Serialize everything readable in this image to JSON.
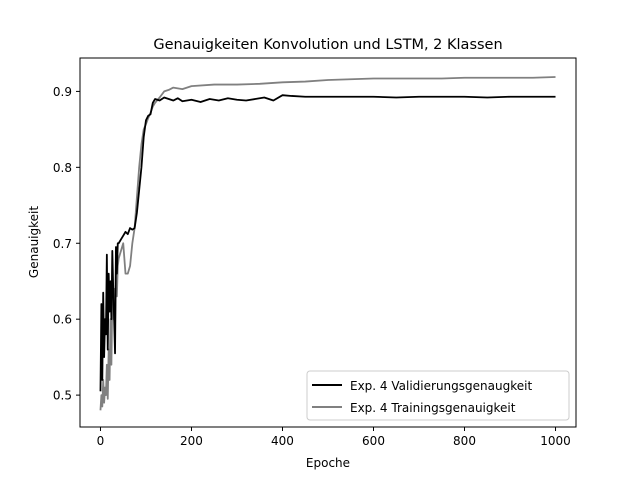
{
  "chart_data": {
    "type": "line",
    "title": "Genauigkeiten Konvolution und LSTM, 2 Klassen",
    "xlabel": "Epoche",
    "ylabel": "Genauigkeit",
    "xlim": [
      -45,
      1045
    ],
    "ylim": [
      0.458,
      0.944
    ],
    "xticks": [
      0,
      200,
      400,
      600,
      800,
      1000
    ],
    "yticks": [
      0.5,
      0.6,
      0.7,
      0.8,
      0.9
    ],
    "grid": false,
    "legend_position": "bottom-right",
    "series": [
      {
        "name": "Exp. 4 Validierungsgenaugkeit",
        "color": "#000000",
        "x": [
          0,
          2,
          4,
          6,
          8,
          10,
          12,
          14,
          16,
          18,
          20,
          22,
          24,
          26,
          28,
          30,
          32,
          34,
          36,
          38,
          40,
          45,
          50,
          55,
          60,
          65,
          70,
          75,
          80,
          85,
          90,
          95,
          100,
          105,
          110,
          115,
          120,
          130,
          140,
          150,
          160,
          170,
          180,
          200,
          220,
          240,
          260,
          280,
          300,
          320,
          340,
          360,
          380,
          400,
          420,
          450,
          500,
          550,
          600,
          650,
          700,
          750,
          800,
          850,
          900,
          950,
          1000
        ],
        "y": [
          0.505,
          0.62,
          0.52,
          0.635,
          0.55,
          0.6,
          0.58,
          0.685,
          0.56,
          0.66,
          0.61,
          0.65,
          0.6,
          0.69,
          0.64,
          0.6,
          0.555,
          0.695,
          0.66,
          0.7,
          0.7,
          0.705,
          0.71,
          0.715,
          0.712,
          0.72,
          0.718,
          0.72,
          0.74,
          0.77,
          0.8,
          0.84,
          0.862,
          0.868,
          0.87,
          0.885,
          0.89,
          0.888,
          0.892,
          0.89,
          0.888,
          0.891,
          0.887,
          0.889,
          0.886,
          0.89,
          0.888,
          0.891,
          0.889,
          0.888,
          0.89,
          0.892,
          0.888,
          0.895,
          0.894,
          0.893,
          0.893,
          0.893,
          0.893,
          0.892,
          0.893,
          0.893,
          0.893,
          0.892,
          0.893,
          0.893,
          0.893
        ]
      },
      {
        "name": "Exp. 4 Trainingsgenauigkeit",
        "color": "#808080",
        "x": [
          0,
          2,
          4,
          6,
          8,
          10,
          12,
          14,
          16,
          18,
          20,
          22,
          24,
          26,
          28,
          30,
          32,
          34,
          36,
          38,
          40,
          45,
          50,
          55,
          60,
          65,
          70,
          75,
          80,
          85,
          90,
          95,
          100,
          105,
          110,
          115,
          120,
          130,
          140,
          150,
          160,
          170,
          180,
          200,
          250,
          300,
          350,
          400,
          450,
          500,
          550,
          600,
          650,
          700,
          750,
          800,
          850,
          900,
          950,
          1000
        ],
        "y": [
          0.48,
          0.5,
          0.485,
          0.52,
          0.49,
          0.51,
          0.5,
          0.54,
          0.495,
          0.56,
          0.52,
          0.6,
          0.54,
          0.63,
          0.6,
          0.64,
          0.59,
          0.66,
          0.63,
          0.67,
          0.68,
          0.69,
          0.7,
          0.66,
          0.66,
          0.67,
          0.7,
          0.72,
          0.76,
          0.8,
          0.83,
          0.85,
          0.857,
          0.865,
          0.872,
          0.88,
          0.885,
          0.892,
          0.9,
          0.902,
          0.905,
          0.904,
          0.903,
          0.907,
          0.909,
          0.909,
          0.91,
          0.912,
          0.913,
          0.915,
          0.916,
          0.917,
          0.917,
          0.917,
          0.917,
          0.918,
          0.918,
          0.918,
          0.918,
          0.919
        ]
      }
    ]
  }
}
